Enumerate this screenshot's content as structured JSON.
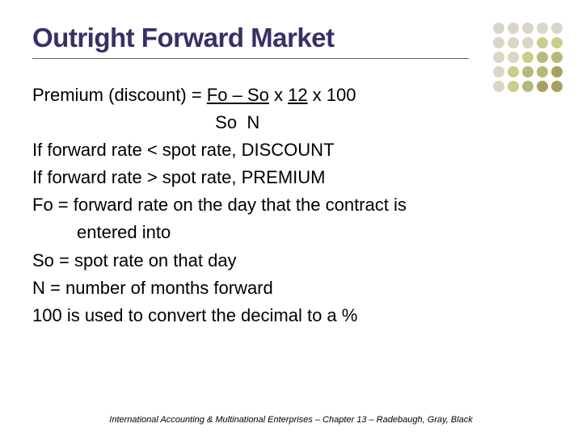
{
  "title": "Outright Forward Market",
  "title_color": "#3a2e6a",
  "underline_color": "#666666",
  "body_font_size": 22,
  "formula": {
    "prefix": "Premium (discount) = ",
    "num_left": "Fo – So",
    "mid1": " x ",
    "num_right": "12",
    "mid2": " x 100",
    "denom_left": "So",
    "denom_right": "N",
    "denom_indent": "                                     "
  },
  "lines": {
    "l1": "If forward rate < spot rate, DISCOUNT",
    "l2": "If forward rate > spot rate, PREMIUM",
    "l3": "Fo = forward rate on the day that the contract is",
    "l3b": "         entered into",
    "l4": "So = spot rate on that day",
    "l5": "N = number of months forward",
    "l6": "100 is used to convert the decimal to a %"
  },
  "footer": "International Accounting & Multinational Enterprises – Chapter 13 – Radebaugh, Gray, Black",
  "dots": {
    "colors": {
      "a": "#d9d6c5",
      "b": "#c9cf8a",
      "c": "#b7b97a",
      "d": "#a8a060"
    },
    "grid": [
      [
        "a",
        "a",
        "a",
        "a",
        "a"
      ],
      [
        "a",
        "a",
        "a",
        "b",
        "b"
      ],
      [
        "a",
        "a",
        "b",
        "c",
        "c"
      ],
      [
        "a",
        "b",
        "c",
        "c",
        "d"
      ],
      [
        "a",
        "b",
        "c",
        "d",
        "d"
      ]
    ]
  },
  "background_color": "#ffffff"
}
